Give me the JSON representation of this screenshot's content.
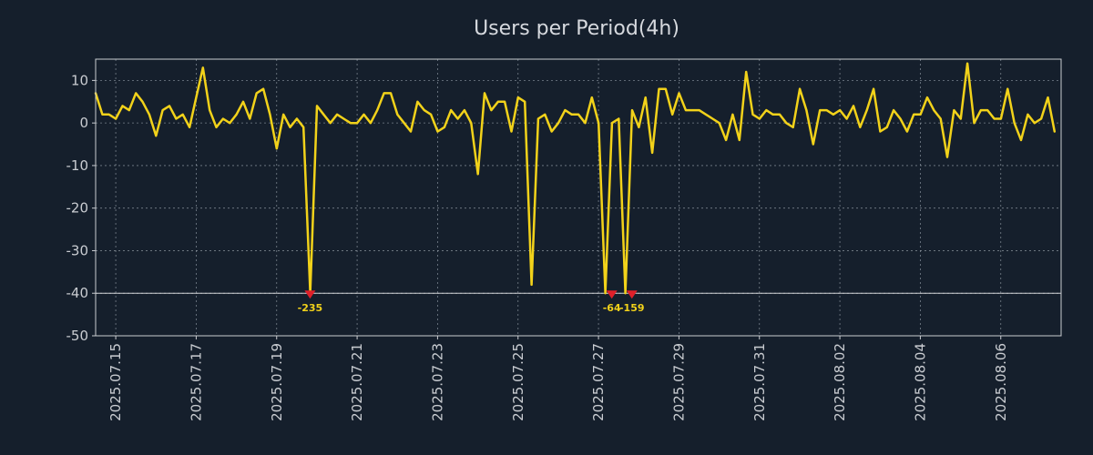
{
  "chart_data": {
    "type": "line",
    "title": "Users per Period(4h)",
    "xlabel": "",
    "ylabel": "",
    "ylim": [
      -50,
      15
    ],
    "yticks": [
      10,
      0,
      -10,
      -20,
      -30,
      -40,
      -50
    ],
    "ytick_labels": [
      "10",
      "0",
      "-10",
      "-20",
      "-30",
      "-40",
      "-50"
    ],
    "x_day_range": [
      14.5,
      38.5
    ],
    "xticks": [
      15,
      17,
      19,
      21,
      23,
      25,
      27,
      29,
      31,
      33,
      35,
      37
    ],
    "xtick_labels": [
      "2025.07.15",
      "2025.07.17",
      "2025.07.19",
      "2025.07.21",
      "2025.07.23",
      "2025.07.25",
      "2025.07.27",
      "2025.07.29",
      "2025.07.31",
      "2025.08.02",
      "2025.08.04",
      "2025.08.06"
    ],
    "clip_line": -40,
    "grid": true,
    "colors": {
      "line": "#f2d21a",
      "marker": "#e0202a",
      "background": "#151f2c",
      "plot_border": "#c9ccd1"
    },
    "series": [
      {
        "name": "users",
        "x_start_day": 14.5,
        "step_days": 0.1667,
        "values": [
          7,
          2,
          2,
          1,
          4,
          3,
          7,
          5,
          2,
          -3,
          3,
          4,
          1,
          2,
          -1,
          6,
          13,
          3,
          -1,
          1,
          0,
          2,
          5,
          1,
          7,
          8,
          2,
          -6,
          2,
          -1,
          1,
          -1,
          -40,
          4,
          2,
          0,
          2,
          1,
          0,
          0,
          2,
          0,
          3,
          7,
          7,
          2,
          0,
          -2,
          5,
          3,
          2,
          -2,
          -1,
          3,
          1,
          3,
          0,
          -12,
          7,
          3,
          5,
          5,
          -2,
          6,
          5,
          -38,
          1,
          2,
          -2,
          0,
          3,
          2,
          2,
          0,
          6,
          0,
          -40,
          0,
          1,
          -40,
          3,
          -1,
          6,
          -7,
          8,
          8,
          2,
          7,
          3,
          3,
          3,
          2,
          1,
          0,
          -4,
          2,
          -4,
          12,
          2,
          1,
          3,
          2,
          2,
          0,
          -1,
          8,
          3,
          -5,
          3,
          3,
          2,
          3,
          1,
          4,
          -1,
          3,
          8,
          -2,
          -1,
          3,
          1,
          -2,
          2,
          2,
          6,
          3,
          1,
          -8,
          3,
          1,
          14,
          0,
          3,
          3,
          1,
          1,
          8,
          0,
          -4,
          2,
          0,
          1,
          6,
          -2
        ]
      }
    ],
    "annotations": [
      {
        "day": 19.83,
        "y": -40,
        "label": "-235"
      },
      {
        "day": 27.33,
        "y": -40,
        "label": "-64"
      },
      {
        "day": 27.83,
        "y": -40,
        "label": "-159"
      }
    ]
  }
}
